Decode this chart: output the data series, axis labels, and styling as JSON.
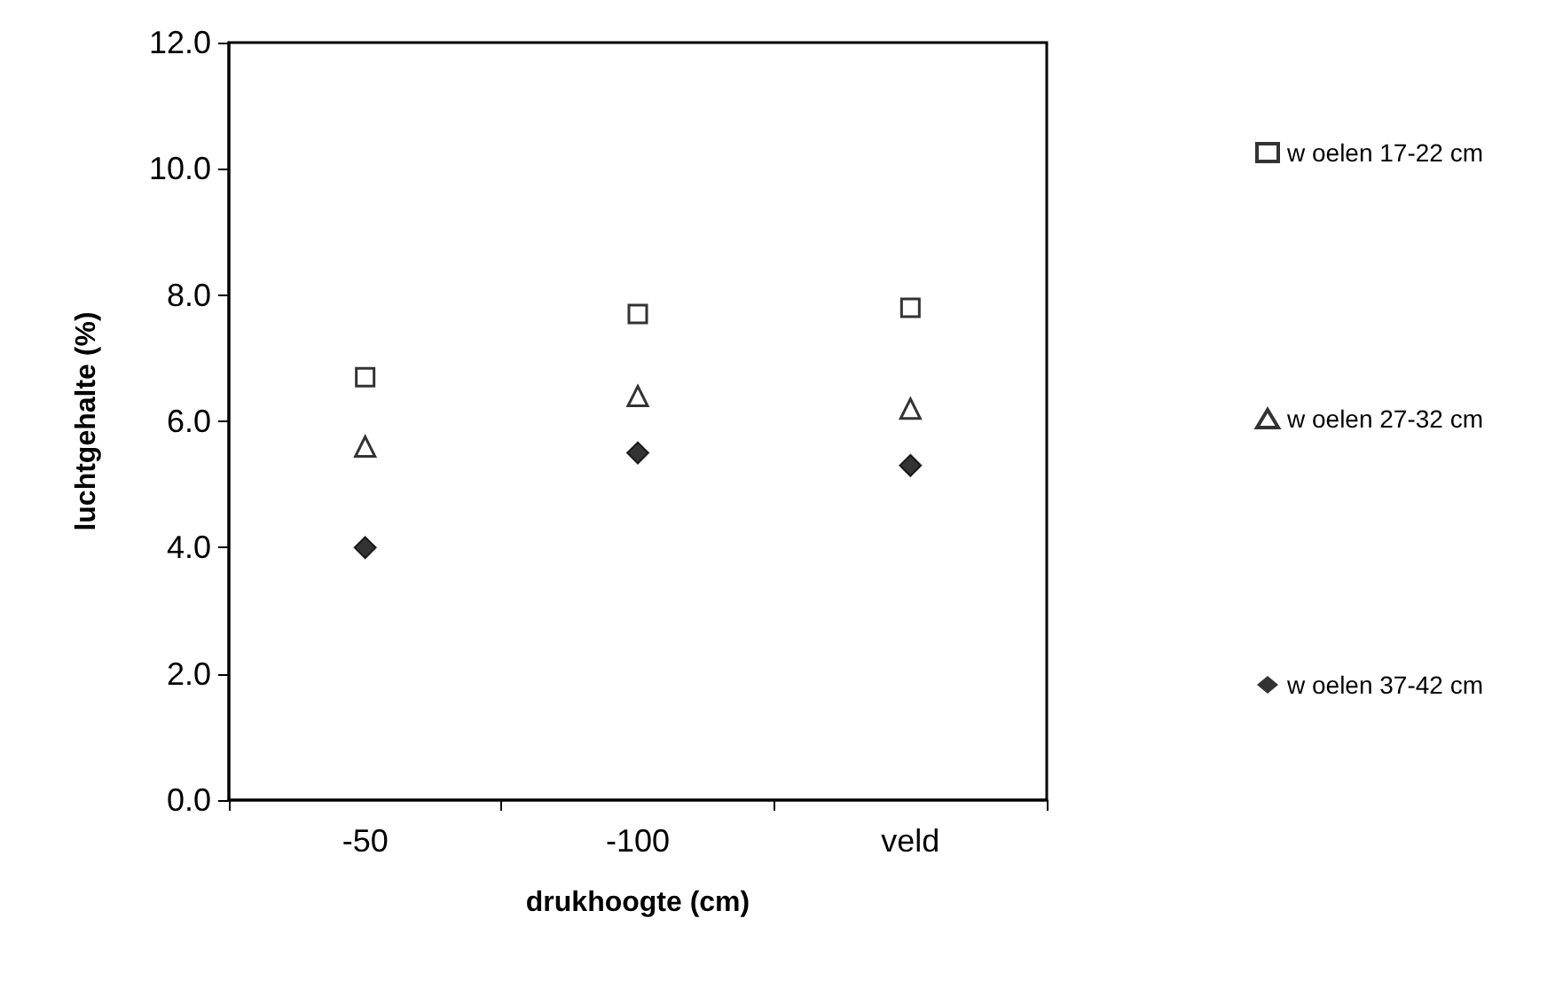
{
  "chart_data": {
    "type": "scatter",
    "xlabel": "drukhoogte (cm)",
    "ylabel": "luchtgehalte (%)",
    "categories": [
      "-50",
      "-100",
      "veld"
    ],
    "series": [
      {
        "name": "w oelen 17-22 cm",
        "color": "#000000",
        "marker": "square",
        "values": [
          6.7,
          7.7,
          7.8
        ]
      },
      {
        "name": "w oelen 27-32 cm",
        "color": "#000000",
        "marker": "triangle",
        "values": [
          5.6,
          6.4,
          6.2
        ]
      },
      {
        "name": "w oelen 37-42 cm",
        "color": "#000000",
        "marker": "diamond",
        "values": [
          4.0,
          5.5,
          5.3
        ]
      }
    ],
    "ylim": [
      0,
      12
    ],
    "yticks": [
      {
        "value": 0,
        "label": "0.0"
      },
      {
        "value": 2,
        "label": "2.0"
      },
      {
        "value": 4,
        "label": "4.0"
      },
      {
        "value": 6,
        "label": "6.0"
      },
      {
        "value": 8,
        "label": "8.0"
      },
      {
        "value": 10,
        "label": "10.0"
      },
      {
        "value": 12,
        "label": "12.0"
      }
    ],
    "grid": false,
    "legend": "right"
  }
}
